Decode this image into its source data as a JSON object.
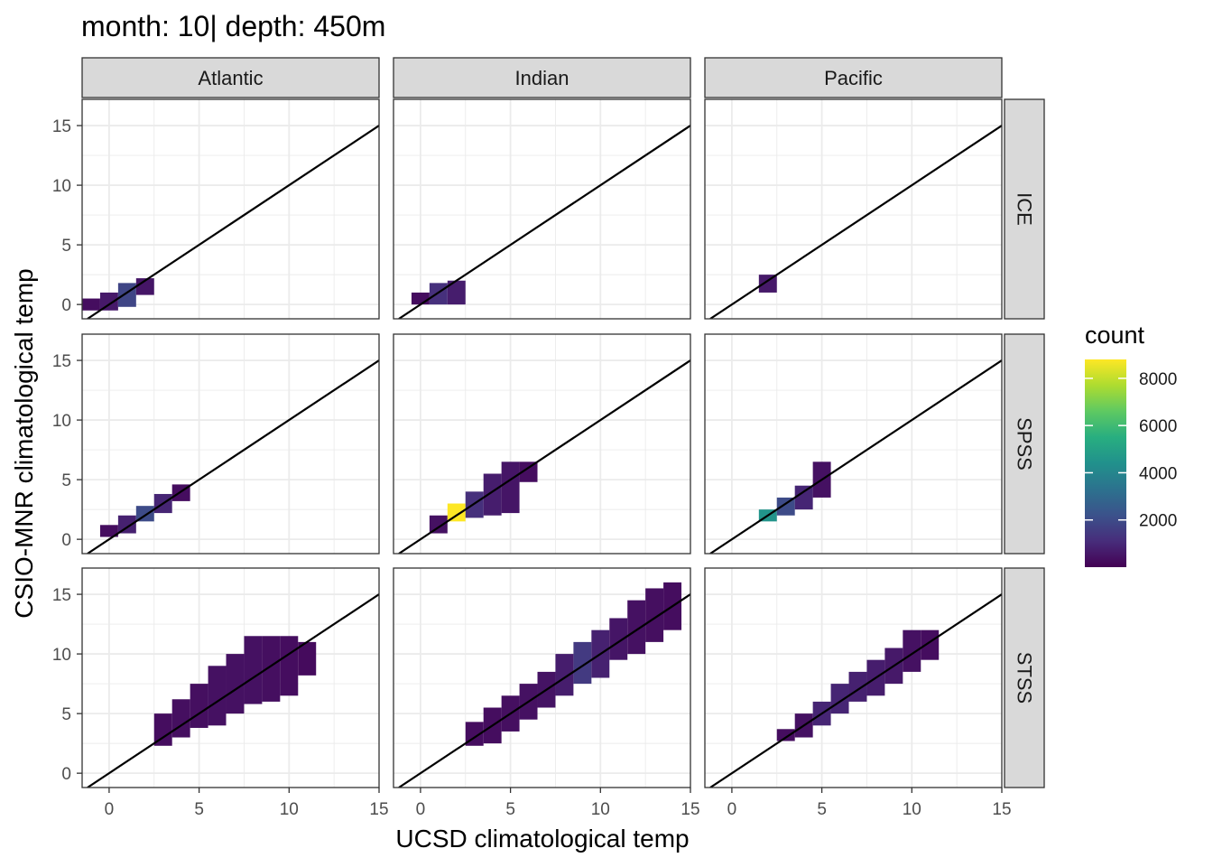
{
  "chart_data": {
    "type": "heatmap",
    "title": "month: 10| depth: 450m",
    "xlabel": "UCSD climatological temp",
    "ylabel": "CSIO-MNR climatological temp",
    "facet_columns": [
      "Atlantic",
      "Indian",
      "Pacific"
    ],
    "facet_rows": [
      "ICE",
      "SPSS",
      "STSS"
    ],
    "xlim": [
      -1.5,
      15
    ],
    "ylim": [
      -1.2,
      17.2
    ],
    "xticks": [
      0,
      5,
      10,
      15
    ],
    "yticks": [
      0,
      5,
      10,
      15
    ],
    "bin_width": 1,
    "grid": true,
    "reference_line": "y = x",
    "legend": {
      "title": "count",
      "position": "right",
      "ticks": [
        2000,
        4000,
        6000,
        8000
      ],
      "range": [
        0,
        8800
      ],
      "colormap": "viridis"
    },
    "panels": [
      {
        "col": "Atlantic",
        "row": "ICE",
        "cells": [
          {
            "x": -1,
            "ymin": -0.5,
            "ymax": 0.5,
            "count": 300
          },
          {
            "x": 0,
            "ymin": -0.5,
            "ymax": 1,
            "count": 600
          },
          {
            "x": 1,
            "ymin": -0.2,
            "ymax": 1.8,
            "count": 1800
          },
          {
            "x": 2,
            "ymin": 0.8,
            "ymax": 2.2,
            "count": 500
          }
        ]
      },
      {
        "col": "Atlantic",
        "row": "SPSS",
        "cells": [
          {
            "x": 0,
            "ymin": 0.2,
            "ymax": 1.2,
            "count": 300
          },
          {
            "x": 1,
            "ymin": 0.5,
            "ymax": 2,
            "count": 800
          },
          {
            "x": 2,
            "ymin": 1.5,
            "ymax": 2.8,
            "count": 2000
          },
          {
            "x": 3,
            "ymin": 2.2,
            "ymax": 3.8,
            "count": 900
          },
          {
            "x": 4,
            "ymin": 3.2,
            "ymax": 4.6,
            "count": 300
          }
        ]
      },
      {
        "col": "Atlantic",
        "row": "STSS",
        "cells": [
          {
            "x": 3,
            "ymin": 2.3,
            "ymax": 5,
            "count": 300
          },
          {
            "x": 4,
            "ymin": 3,
            "ymax": 6.2,
            "count": 350
          },
          {
            "x": 5,
            "ymin": 3.8,
            "ymax": 7.5,
            "count": 350
          },
          {
            "x": 6,
            "ymin": 4,
            "ymax": 9,
            "count": 400
          },
          {
            "x": 7,
            "ymin": 5,
            "ymax": 10,
            "count": 400
          },
          {
            "x": 8,
            "ymin": 5.8,
            "ymax": 11.5,
            "count": 400
          },
          {
            "x": 9,
            "ymin": 6,
            "ymax": 11.5,
            "count": 350
          },
          {
            "x": 10,
            "ymin": 6.5,
            "ymax": 11.5,
            "count": 300
          },
          {
            "x": 11,
            "ymin": 8.2,
            "ymax": 11,
            "count": 250
          }
        ]
      },
      {
        "col": "Indian",
        "row": "ICE",
        "cells": [
          {
            "x": 0,
            "ymin": 0,
            "ymax": 1,
            "count": 300
          },
          {
            "x": 1,
            "ymin": 0,
            "ymax": 1.8,
            "count": 1200
          },
          {
            "x": 2,
            "ymin": 0,
            "ymax": 2,
            "count": 700
          }
        ]
      },
      {
        "col": "Indian",
        "row": "SPSS",
        "cells": [
          {
            "x": 1,
            "ymin": 0.5,
            "ymax": 2,
            "count": 400
          },
          {
            "x": 2,
            "ymin": 1.5,
            "ymax": 3,
            "count": 8800
          },
          {
            "x": 3,
            "ymin": 1.8,
            "ymax": 4,
            "count": 1200
          },
          {
            "x": 4,
            "ymin": 2,
            "ymax": 5.5,
            "count": 700
          },
          {
            "x": 5,
            "ymin": 2.2,
            "ymax": 6.5,
            "count": 500
          },
          {
            "x": 6,
            "ymin": 4.8,
            "ymax": 6.5,
            "count": 300
          }
        ]
      },
      {
        "col": "Indian",
        "row": "STSS",
        "cells": [
          {
            "x": 3,
            "ymin": 2.3,
            "ymax": 4.3,
            "count": 300
          },
          {
            "x": 4,
            "ymin": 2.5,
            "ymax": 5.5,
            "count": 300
          },
          {
            "x": 5,
            "ymin": 3.5,
            "ymax": 6.5,
            "count": 350
          },
          {
            "x": 6,
            "ymin": 4.5,
            "ymax": 7.5,
            "count": 400
          },
          {
            "x": 7,
            "ymin": 5.5,
            "ymax": 8.5,
            "count": 450
          },
          {
            "x": 8,
            "ymin": 6.5,
            "ymax": 10,
            "count": 700
          },
          {
            "x": 9,
            "ymin": 7.5,
            "ymax": 11,
            "count": 1500
          },
          {
            "x": 10,
            "ymin": 8,
            "ymax": 12,
            "count": 800
          },
          {
            "x": 11,
            "ymin": 9.5,
            "ymax": 13,
            "count": 500
          },
          {
            "x": 12,
            "ymin": 10,
            "ymax": 14.5,
            "count": 400
          },
          {
            "x": 13,
            "ymin": 11,
            "ymax": 15.5,
            "count": 350
          },
          {
            "x": 14,
            "ymin": 12,
            "ymax": 16,
            "count": 300
          }
        ]
      },
      {
        "col": "Pacific",
        "row": "ICE",
        "cells": [
          {
            "x": 2,
            "ymin": 1,
            "ymax": 2.5,
            "count": 600
          }
        ]
      },
      {
        "col": "Pacific",
        "row": "SPSS",
        "cells": [
          {
            "x": 2,
            "ymin": 1.5,
            "ymax": 2.5,
            "count": 4500
          },
          {
            "x": 3,
            "ymin": 2,
            "ymax": 3.5,
            "count": 2000
          },
          {
            "x": 4,
            "ymin": 2.5,
            "ymax": 4.5,
            "count": 900
          },
          {
            "x": 5,
            "ymin": 3.5,
            "ymax": 6.5,
            "count": 400
          }
        ]
      },
      {
        "col": "Pacific",
        "row": "STSS",
        "cells": [
          {
            "x": 3,
            "ymin": 2.7,
            "ymax": 3.7,
            "count": 300
          },
          {
            "x": 4,
            "ymin": 3,
            "ymax": 5,
            "count": 400
          },
          {
            "x": 5,
            "ymin": 4,
            "ymax": 6,
            "count": 900
          },
          {
            "x": 6,
            "ymin": 5,
            "ymax": 7.5,
            "count": 900
          },
          {
            "x": 7,
            "ymin": 6,
            "ymax": 8.5,
            "count": 800
          },
          {
            "x": 8,
            "ymin": 6.5,
            "ymax": 9.5,
            "count": 700
          },
          {
            "x": 9,
            "ymin": 7.5,
            "ymax": 10.5,
            "count": 600
          },
          {
            "x": 10,
            "ymin": 8.5,
            "ymax": 12,
            "count": 400
          },
          {
            "x": 11,
            "ymin": 9.5,
            "ymax": 12,
            "count": 300
          }
        ]
      }
    ]
  }
}
